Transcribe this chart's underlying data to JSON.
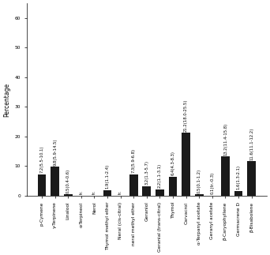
{
  "categories": [
    "p-Cymene",
    "γ-Terpinene",
    "Linalool",
    "α-Terpineol",
    "Nerol",
    "Thymol methyl ether",
    "Neral (cis-citral)",
    "neral methyl ether",
    "Geraniol",
    "Geranial (trans-citral)",
    "Thymol",
    "Carvacrol",
    "α-Terpanyl acetate",
    "Geranyl acetate",
    "β-Caryophyllene",
    "Germacrene D",
    "β-Bisabolene"
  ],
  "values": [
    7.2,
    9.8,
    0.5,
    0.0,
    0.0,
    1.9,
    0.0,
    7.3,
    3.2,
    2.2,
    6.4,
    21.2,
    0.5,
    0.1,
    13.2,
    1.6,
    11.6
  ],
  "labels": [
    "7.2(5.5-10.1)",
    "9.8(5.9-14.5)",
    "0.5(0.4-0.6)",
    "tr.",
    "tr.",
    "1.9(1.1-2.4)",
    "tr.",
    "7.3(5.9-6.8)",
    "3.2(1.3-5.7)",
    "2.2(1.1-3.1)",
    "6.4(4.3-8.3)",
    "21.2(18.0-25.5)",
    "0.5(0.1-1.2)",
    "0.1(tr.-0.3)",
    "13.2(11.4-15.8)",
    "1.6(1.3-2.1)",
    "11.6(11.1-12.2)"
  ],
  "tr_indices": [
    3,
    4,
    6
  ],
  "ylabel": "Percentage",
  "ylim": [
    0,
    65
  ],
  "yticks": [
    0,
    10,
    20,
    30,
    40,
    50,
    60
  ],
  "bar_color": "#1a1a1a",
  "background_color": "#ffffff",
  "label_fontsize": 3.8,
  "tick_fontsize": 4.2,
  "ylabel_fontsize": 5.5,
  "xtick_rotation": 90
}
